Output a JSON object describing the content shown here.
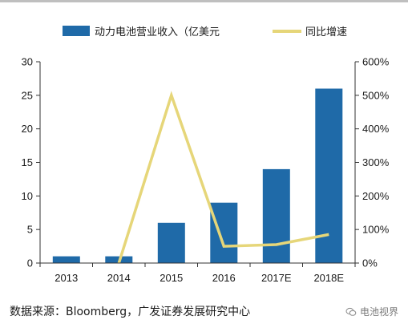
{
  "chart_data": {
    "type": "bar+line",
    "title": "",
    "categories": [
      "2013",
      "2014",
      "2015",
      "2016",
      "2017E",
      "2018E"
    ],
    "series": [
      {
        "name": "动力电池营业收入（亿美元",
        "type": "bar",
        "axis": "left",
        "color": "#1f6aa8",
        "values": [
          1,
          1,
          6,
          9,
          14,
          26
        ]
      },
      {
        "name": "同比增速",
        "type": "line",
        "axis": "right",
        "color": "#e6d679",
        "values": [
          null,
          0,
          500,
          50,
          55,
          85
        ]
      }
    ],
    "y_left": {
      "min": 0,
      "max": 30,
      "ticks": [
        0,
        5,
        10,
        15,
        20,
        25,
        30
      ]
    },
    "y_right": {
      "min": 0,
      "max": 600,
      "ticks": [
        "0%",
        "100%",
        "200%",
        "300%",
        "400%",
        "500%",
        "600%"
      ]
    },
    "grid": false,
    "legend_position": "top"
  },
  "footer": {
    "source": "数据来源：Bloomberg，广发证券发展研究中心",
    "watermark": "电池视界"
  }
}
